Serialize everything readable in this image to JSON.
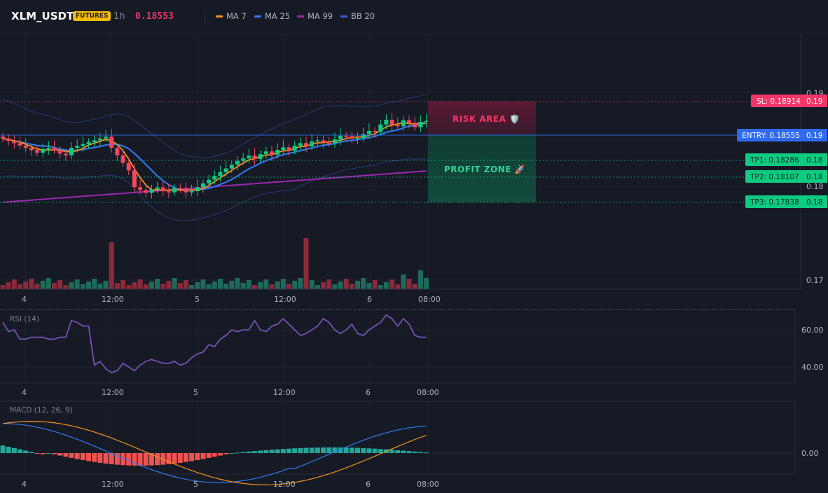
{
  "header": {
    "symbol": "XLM_USDT",
    "badge": "FUTURES",
    "timeframe": "1h",
    "last_price": "0.18553",
    "legend": [
      {
        "label": "MA 7",
        "color": "#f7931a"
      },
      {
        "label": "MA 25",
        "color": "#2f7cf6"
      },
      {
        "label": "MA 99",
        "color": "#9c27b0"
      },
      {
        "label": "BB 20",
        "color": "#3b5bd6"
      }
    ]
  },
  "colors": {
    "up": "#0ecb81",
    "down": "#f6465d",
    "volume_up": "#1d6b5a",
    "volume_down": "#8b2a3a",
    "sl": "#f23668",
    "entry": "#2f6bf0",
    "tp": "#0ecb81",
    "rsi": "#7e57c2",
    "macd": "#2f7cf6",
    "signal": "#f7931a"
  },
  "chart_data": {
    "type": "candlestick",
    "y_ticks_price": [
      "0.19",
      "0.18",
      "0.17"
    ],
    "x_ticks": [
      "4",
      "12:00",
      "5",
      "12:00",
      "6",
      "08:00"
    ],
    "levels": [
      {
        "name": "SL",
        "label": "SL: 0.18914",
        "price": 0.18914,
        "tick": "0.19"
      },
      {
        "name": "ENTRY",
        "label": "ENTRY: 0.18555",
        "price": 0.18555,
        "tick": "0.19"
      },
      {
        "name": "TP1",
        "label": "TP1: 0.18286",
        "price": 0.18286,
        "tick": "0.18"
      },
      {
        "name": "TP2",
        "label": "TP2: 0.18107",
        "price": 0.18107,
        "tick": "0.18"
      },
      {
        "name": "TP3",
        "label": "TP3: 0.17838",
        "price": 0.17838,
        "tick": "0.18"
      }
    ],
    "zones": {
      "risk": "RISK AREA 🛡️",
      "profit": "PROFIT ZONE 🚀"
    },
    "rsi": {
      "label": "RSI (14)",
      "ticks": [
        "60.00",
        "40.00"
      ],
      "values": [
        64,
        59,
        60,
        55,
        55,
        56,
        56,
        56,
        55,
        55,
        56,
        56,
        65,
        64,
        62,
        62,
        41,
        43,
        39,
        37,
        38,
        42,
        40,
        38,
        41,
        43,
        44,
        43,
        42,
        42,
        43,
        41,
        42,
        45,
        47,
        48,
        52,
        51,
        55,
        57,
        60,
        59,
        60,
        60,
        65,
        60,
        59,
        62,
        63,
        66,
        63,
        60,
        57,
        58,
        60,
        62,
        66,
        64,
        60,
        58,
        60,
        63,
        58,
        57,
        60,
        62,
        64,
        68,
        66,
        62,
        66,
        63,
        57,
        56,
        56
      ]
    },
    "macd": {
      "label": "MACD (12, 26, 9)",
      "ticks": [
        "0.00"
      ]
    }
  }
}
